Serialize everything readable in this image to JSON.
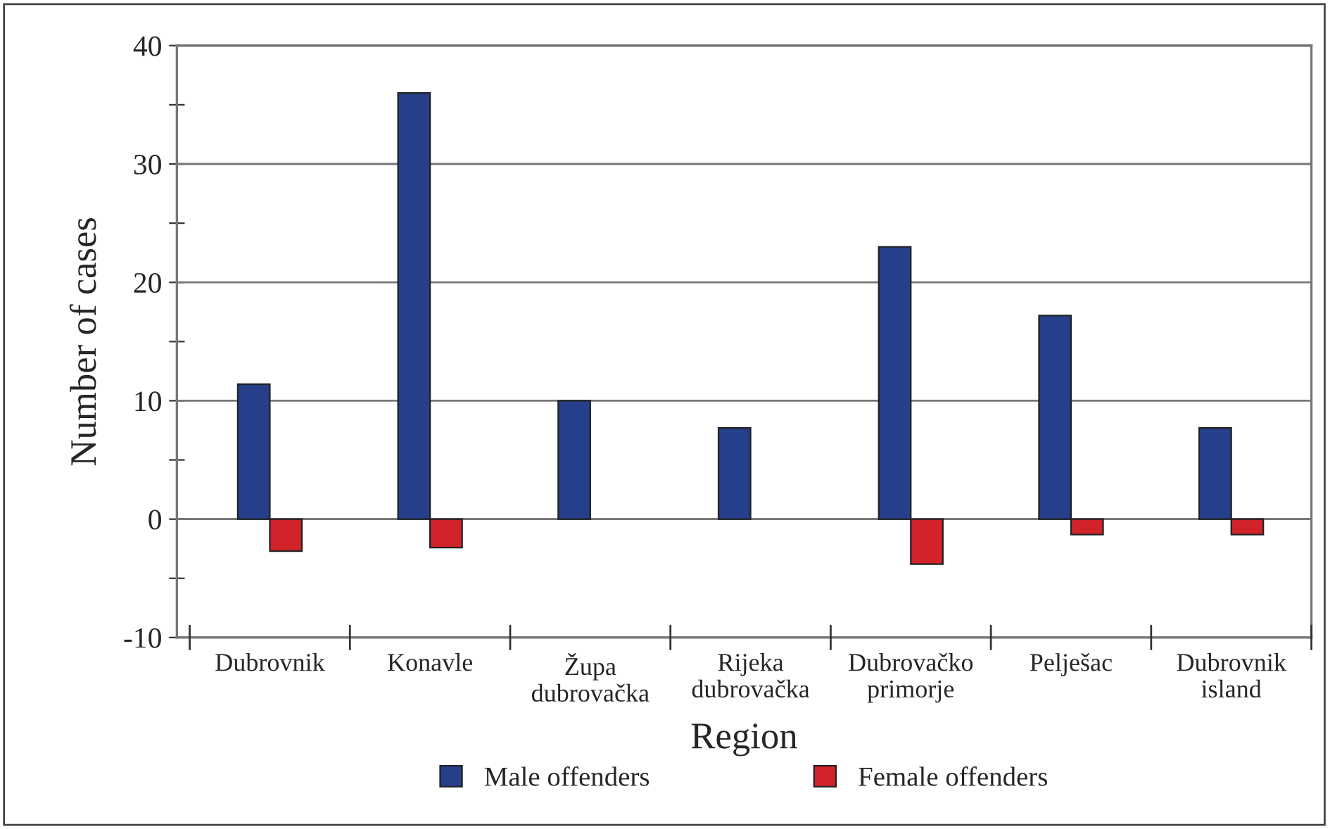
{
  "chart_data": {
    "type": "bar",
    "xlabel": "Region",
    "ylabel": "Number of cases",
    "categories": [
      "Dubrovnik",
      "Konavle",
      "Župa\ndubrovačka",
      "Rijeka\ndubrovačka",
      "Dubrovačko\nprimorje",
      "Pelješac",
      "Dubrovnik\nisland"
    ],
    "series": [
      {
        "name": "Male offenders",
        "color": "#253f8b",
        "values": [
          11.4,
          36,
          10,
          7.7,
          23,
          17.2,
          7.7
        ]
      },
      {
        "name": "Female offenders",
        "color": "#d2232b",
        "values": [
          -2.7,
          -2.4,
          null,
          null,
          -3.8,
          -1.3,
          -1.3
        ]
      }
    ],
    "ylim": [
      -10,
      40
    ],
    "yticks": [
      -10,
      {
        "value": -5,
        "label": null
      },
      0,
      {
        "value": 5,
        "label": null
      },
      10,
      {
        "value": 15,
        "label": null
      },
      20,
      {
        "value": 25,
        "label": null
      },
      30,
      {
        "value": 35,
        "label": null
      },
      40
    ],
    "grid": "y",
    "legend": "bottom"
  }
}
